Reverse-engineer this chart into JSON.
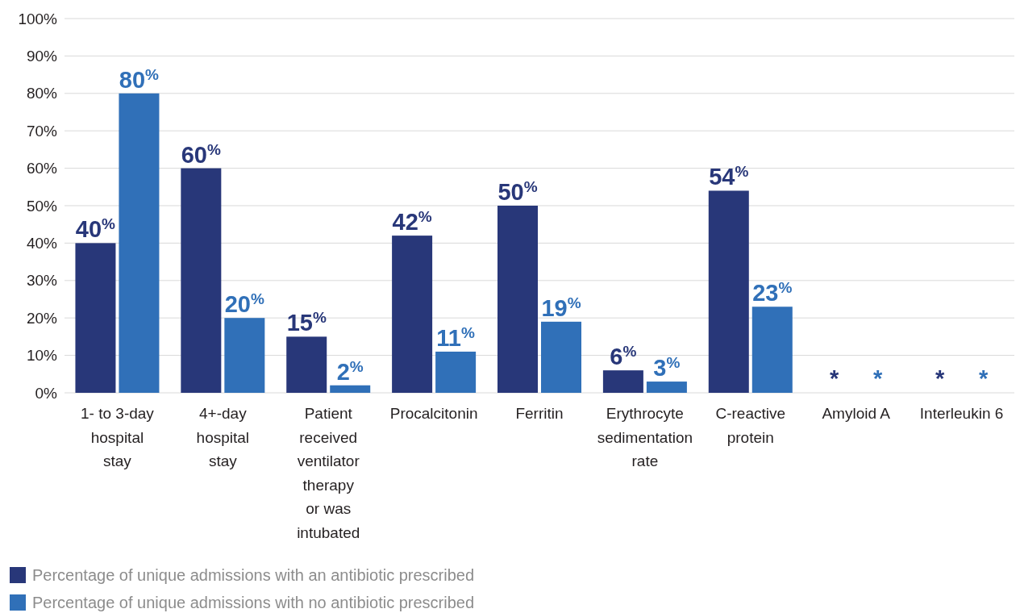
{
  "chart_data": {
    "type": "bar",
    "categories": [
      "1- to 3-day\nhospital\nstay",
      "4+-day\nhospital\nstay",
      "Patient\nreceived\nventilator\ntherapy\nor was\nintubated",
      "Procalcitonin",
      "Ferritin",
      "Erythrocyte\nsedimentation\nrate",
      "C-reactive\nprotein",
      "Amyloid A",
      "Interleukin 6"
    ],
    "series": [
      {
        "name": "Percentage of unique admissions with an antibiotic prescribed",
        "color": "#283779",
        "values": [
          40,
          60,
          15,
          42,
          50,
          6,
          54,
          null,
          null
        ],
        "value_labels": [
          "40$^{%}$",
          "60$^{%}$",
          "15$^{%}$",
          "42$^{%}$",
          "50$^{%}$",
          "6$^{%}$",
          "54$^{%}$",
          "*",
          "*"
        ]
      },
      {
        "name": "Percentage of unique admissions with no antibiotic prescribed",
        "color": "#3070b8",
        "values": [
          80,
          20,
          2,
          11,
          19,
          3,
          23,
          null,
          null
        ],
        "value_labels": [
          "80$^{%}$",
          "20$^{%}$",
          "2$^{%}$",
          "11$^{%}$",
          "19$^{%}$",
          "3$^{%}$",
          "23$^{%}$",
          "*",
          "*"
        ]
      }
    ],
    "ylim": [
      0,
      100
    ],
    "yticks": [
      {
        "value": 0,
        "label": "0%"
      },
      {
        "value": 10,
        "label": "10%"
      },
      {
        "value": 20,
        "label": "20%"
      },
      {
        "value": 30,
        "label": "30%"
      },
      {
        "value": 40,
        "label": "40%"
      },
      {
        "value": 50,
        "label": "50%"
      },
      {
        "value": 60,
        "label": "60%"
      },
      {
        "value": 70,
        "label": "70%"
      },
      {
        "value": 80,
        "label": "80%"
      },
      {
        "value": 90,
        "label": "90%"
      },
      {
        "value": 100,
        "label": "100%"
      }
    ],
    "grid": "y",
    "legend": "bottom"
  }
}
